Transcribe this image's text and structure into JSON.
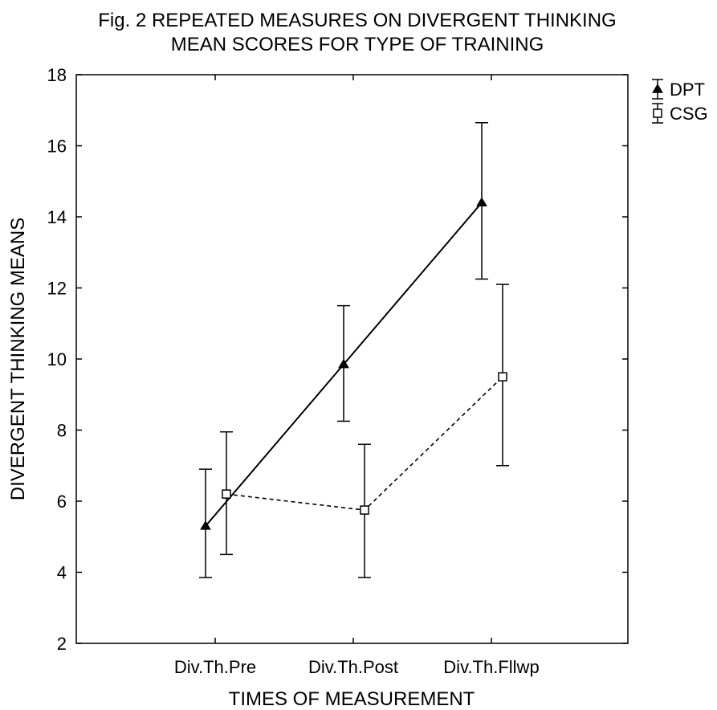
{
  "chart_data": {
    "type": "line",
    "title": [
      "Fig. 2 REPEATED MEASURES ON DIVERGENT THINKING",
      "MEAN SCORES FOR TYPE OF TRAINING"
    ],
    "xlabel": "TIMES OF MEASUREMENT",
    "ylabel": "DIVERGENT THINKING MEANS",
    "categories": [
      "Div.Th.Pre",
      "Div.Th.Post",
      "Div.Th.Fllwp"
    ],
    "ylim": [
      2,
      18
    ],
    "yticks": [
      2,
      4,
      6,
      8,
      10,
      12,
      14,
      16,
      18
    ],
    "grid": false,
    "legend_position": "top-right",
    "series": [
      {
        "name": "DPT",
        "marker": "triangle",
        "line_style": "solid",
        "values": [
          5.3,
          9.85,
          14.4
        ],
        "error_low": [
          3.85,
          8.25,
          12.25
        ],
        "error_high": [
          6.9,
          11.5,
          16.65
        ]
      },
      {
        "name": "CSG",
        "marker": "square",
        "line_style": "dashed",
        "values": [
          6.2,
          5.75,
          9.5
        ],
        "error_low": [
          4.5,
          3.85,
          7.0
        ],
        "error_high": [
          7.95,
          7.6,
          12.1
        ]
      }
    ]
  }
}
